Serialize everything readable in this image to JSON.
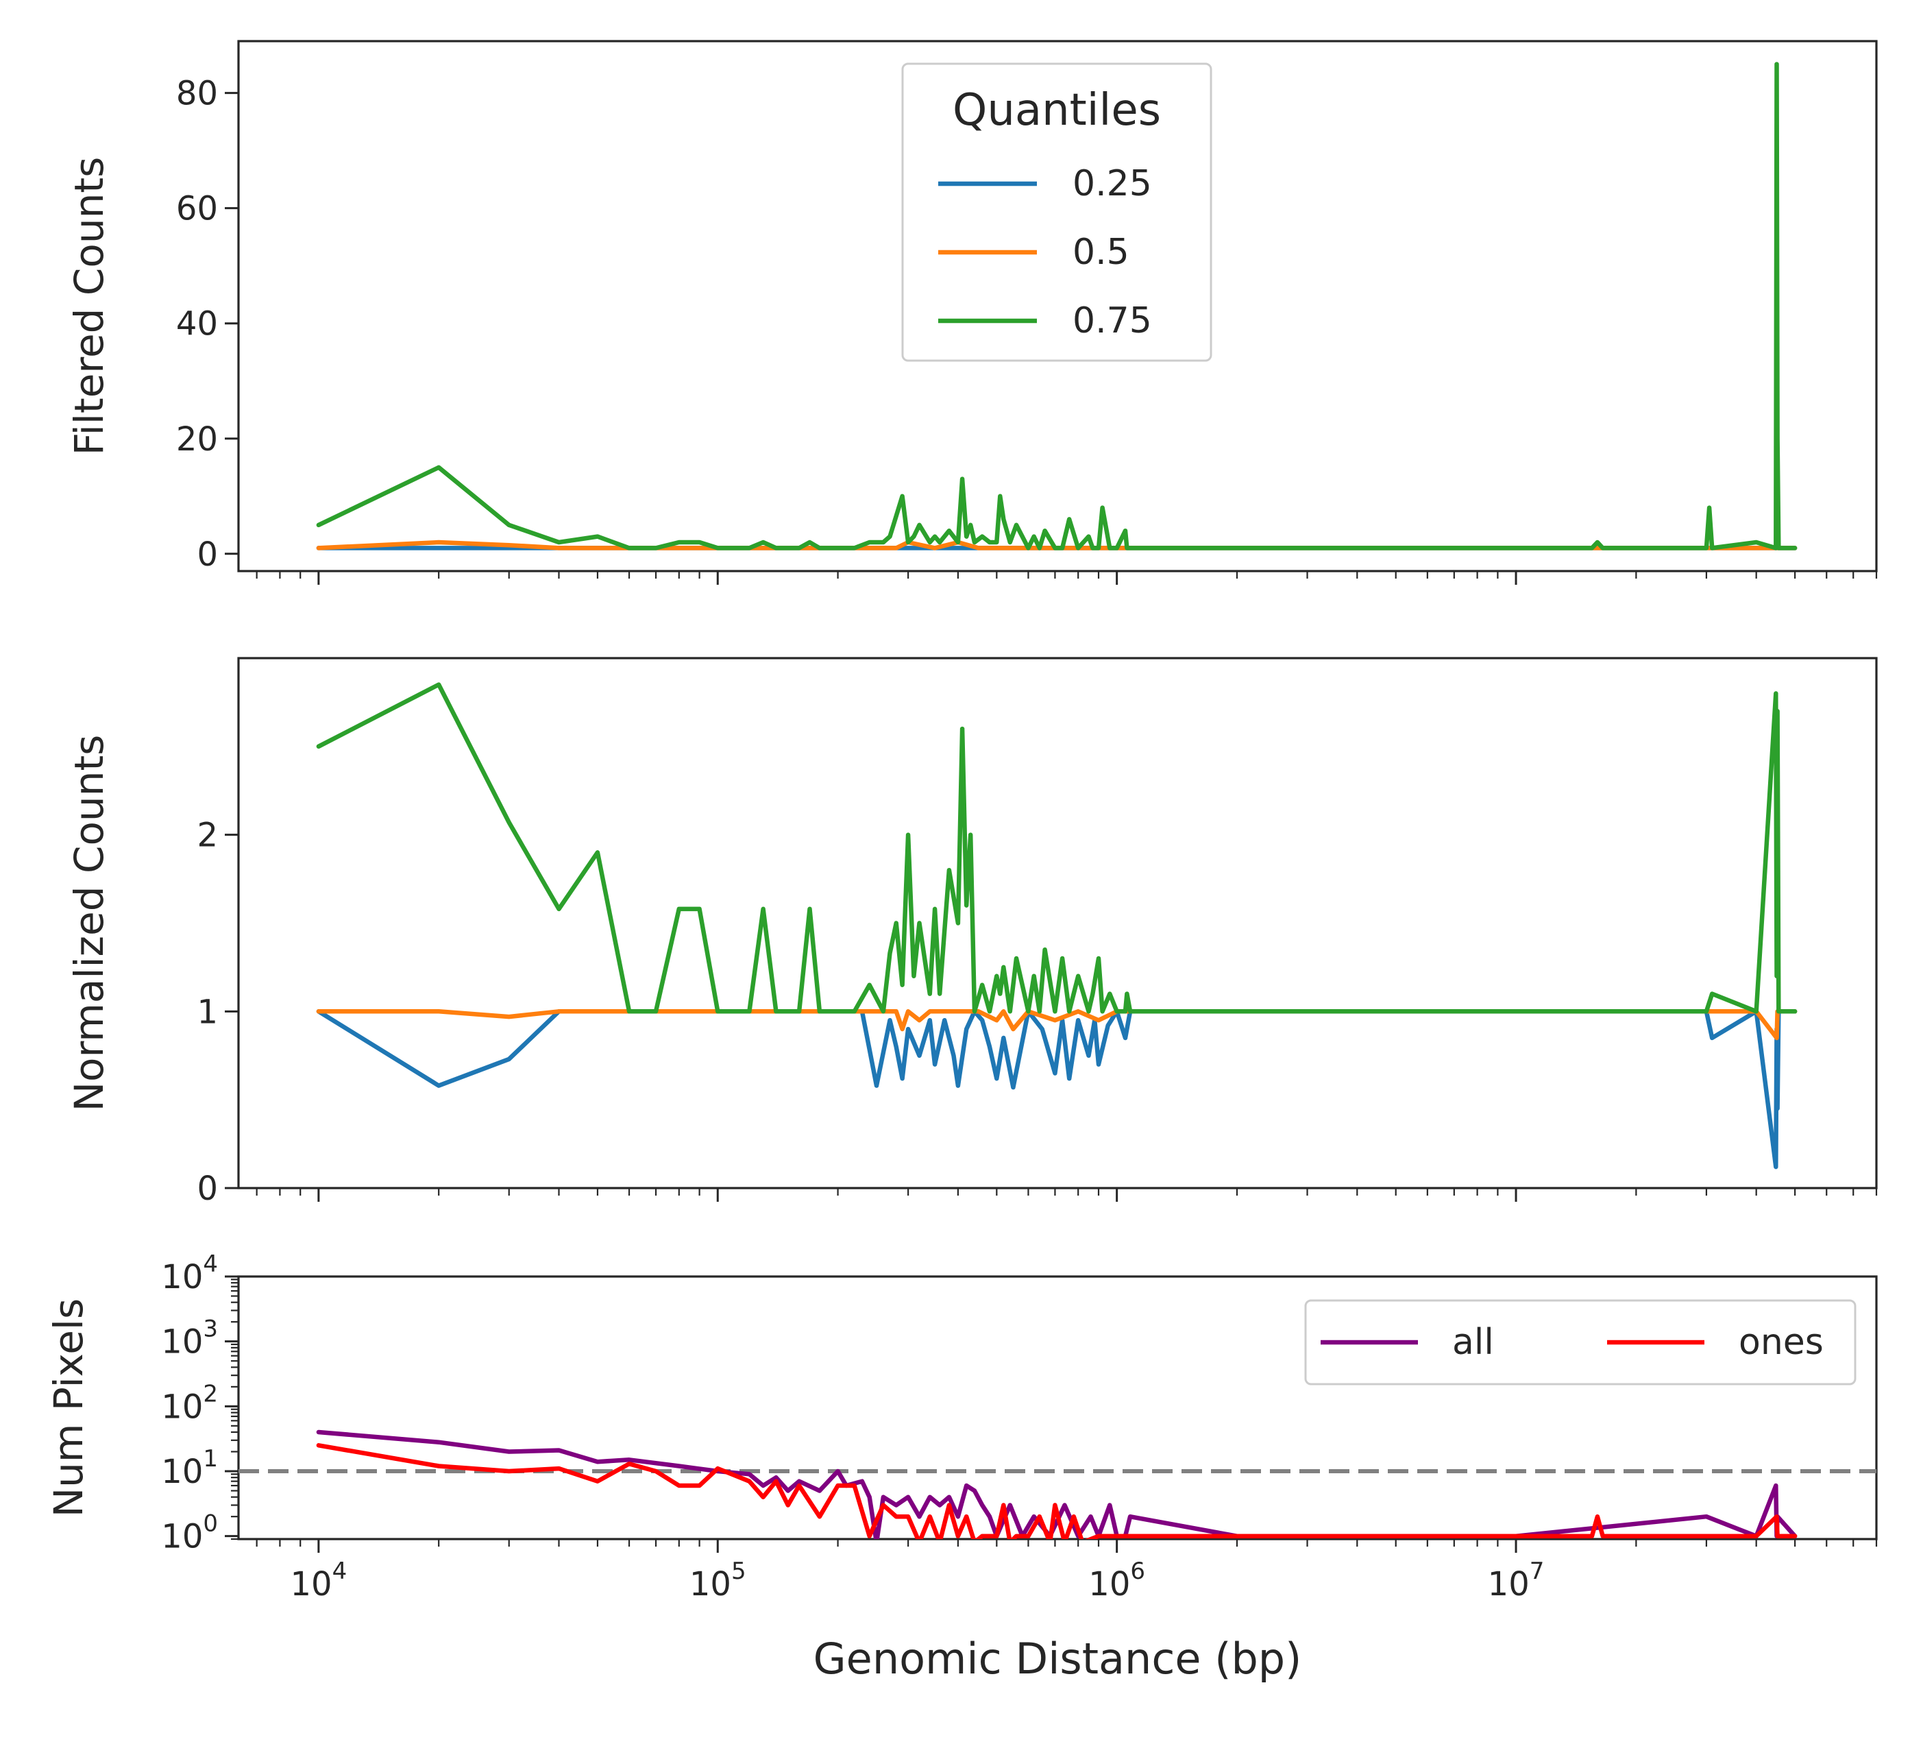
{
  "chart_data": [
    {
      "type": "line",
      "xscale": "log",
      "xlim": [
        6300,
        80000000
      ],
      "ylim": [
        -3,
        89
      ],
      "yticks": [
        0,
        20,
        40,
        60,
        80
      ],
      "ylabel": "Filtered Counts",
      "xlabel": "",
      "grid": false,
      "legend": {
        "title": "Quantiles",
        "placement": "upper-center"
      },
      "series": [
        {
          "name": "0.25",
          "color": "#1f77b4",
          "x": [
            10000,
            20000,
            30000,
            40000,
            50000,
            60000,
            80000,
            100000,
            200000,
            250000,
            300000,
            350000,
            400000,
            450000,
            500000,
            600000,
            800000,
            1000000,
            2000000,
            10000000,
            30000000,
            40000000,
            45000000,
            50000000
          ],
          "y": [
            1,
            1,
            1,
            1,
            1,
            1,
            1,
            1,
            1,
            1,
            1,
            1,
            1,
            1,
            1,
            1,
            1,
            1,
            1,
            1,
            1,
            1,
            1,
            1
          ]
        },
        {
          "name": "0.5",
          "color": "#ff7f0e",
          "x": [
            10000,
            20000,
            30000,
            40000,
            50000,
            60000,
            80000,
            100000,
            200000,
            280000,
            300000,
            350000,
            400000,
            450000,
            500000,
            600000,
            800000,
            1000000,
            2000000,
            10000000,
            30000000,
            40000000,
            45000000,
            50000000
          ],
          "y": [
            1,
            2,
            1.5,
            1,
            1,
            1,
            1,
            1,
            1,
            1,
            2,
            1,
            2,
            1,
            1,
            1,
            1,
            1,
            1,
            1,
            1,
            1,
            1,
            1
          ]
        },
        {
          "name": "0.75",
          "color": "#2ca02c",
          "x": [
            10000,
            20000,
            30000,
            40000,
            50000,
            60000,
            70000,
            80000,
            90000,
            100000,
            120000,
            130000,
            140000,
            160000,
            170000,
            180000,
            220000,
            240000,
            260000,
            270000,
            290000,
            300000,
            310000,
            320000,
            340000,
            350000,
            360000,
            380000,
            400000,
            410000,
            420000,
            430000,
            440000,
            460000,
            480000,
            500000,
            510000,
            520000,
            540000,
            560000,
            600000,
            620000,
            640000,
            660000,
            700000,
            730000,
            760000,
            800000,
            850000,
            870000,
            900000,
            920000,
            960000,
            1000000,
            1050000,
            1060000,
            1080000,
            2000000,
            10000000,
            15500000,
            16000000,
            16500000,
            30000000,
            30500000,
            31000000,
            40000000,
            44800000,
            45000000,
            45200000,
            45500000,
            46000000,
            50000000
          ],
          "y": [
            5,
            15,
            5,
            2,
            3,
            1,
            1,
            2,
            2,
            1,
            1,
            2,
            1,
            1,
            2,
            1,
            1,
            2,
            2,
            3,
            10,
            2,
            3,
            5,
            2,
            3,
            2,
            4,
            2,
            13,
            3,
            5,
            2,
            3,
            2,
            2,
            10,
            6,
            2,
            5,
            1,
            3,
            1,
            4,
            1,
            1,
            6,
            1,
            3,
            1,
            1,
            8,
            1,
            1,
            4,
            1,
            1,
            1,
            1,
            1,
            2,
            1,
            1,
            8,
            1,
            2,
            1,
            85,
            20,
            1,
            1,
            1
          ]
        }
      ]
    },
    {
      "type": "line",
      "xscale": "log",
      "xlim": [
        6300,
        80000000
      ],
      "ylim": [
        0,
        3
      ],
      "yticks": [
        0,
        1,
        2
      ],
      "ylabel": "Normalized Counts",
      "xlabel": "",
      "grid": false,
      "series": [
        {
          "name": "0.25",
          "color": "#1f77b4",
          "x": [
            10000,
            20000,
            30000,
            40000,
            50000,
            200000,
            230000,
            250000,
            270000,
            280000,
            290000,
            300000,
            320000,
            340000,
            350000,
            370000,
            390000,
            400000,
            420000,
            440000,
            460000,
            480000,
            500000,
            520000,
            550000,
            600000,
            650000,
            700000,
            730000,
            760000,
            800000,
            850000,
            880000,
            900000,
            950000,
            1000000,
            1050000,
            1080000,
            2000000,
            10000000,
            30000000,
            31000000,
            40000000,
            44800000,
            45000000,
            45200000,
            45500000,
            50000000
          ],
          "y": [
            1,
            0.58,
            0.73,
            1,
            1,
            1,
            1,
            0.58,
            0.95,
            0.8,
            0.62,
            0.9,
            0.75,
            0.95,
            0.7,
            0.95,
            0.75,
            0.58,
            0.9,
            1,
            0.95,
            0.8,
            0.62,
            0.85,
            0.57,
            1,
            0.9,
            0.65,
            0.95,
            0.62,
            0.95,
            0.75,
            0.95,
            0.7,
            0.92,
            1,
            0.85,
            1,
            1,
            1,
            1,
            0.85,
            1,
            0.12,
            0.9,
            0.45,
            1,
            1
          ]
        },
        {
          "name": "0.5",
          "color": "#ff7f0e",
          "x": [
            10000,
            20000,
            30000,
            40000,
            50000,
            200000,
            280000,
            290000,
            300000,
            320000,
            340000,
            400000,
            450000,
            500000,
            520000,
            550000,
            600000,
            700000,
            800000,
            900000,
            1000000,
            2000000,
            10000000,
            30000000,
            40000000,
            45000000,
            45200000,
            50000000
          ],
          "y": [
            1,
            1,
            0.97,
            1,
            1,
            1,
            1,
            0.9,
            1,
            0.95,
            1,
            1,
            1,
            0.95,
            1,
            0.9,
            1,
            0.95,
            1,
            0.95,
            1,
            1,
            1,
            1,
            1,
            0.85,
            1,
            1
          ]
        },
        {
          "name": "0.75",
          "color": "#2ca02c",
          "x": [
            10000,
            20000,
            30000,
            40000,
            50000,
            60000,
            70000,
            80000,
            90000,
            100000,
            120000,
            130000,
            140000,
            160000,
            170000,
            180000,
            220000,
            240000,
            260000,
            270000,
            280000,
            290000,
            300000,
            310000,
            320000,
            340000,
            350000,
            360000,
            380000,
            400000,
            410000,
            420000,
            430000,
            440000,
            460000,
            480000,
            500000,
            510000,
            520000,
            540000,
            560000,
            600000,
            620000,
            640000,
            660000,
            700000,
            730000,
            760000,
            800000,
            850000,
            870000,
            900000,
            920000,
            960000,
            1000000,
            1050000,
            1060000,
            1080000,
            2000000,
            10000000,
            30000000,
            31000000,
            40000000,
            44800000,
            45000000,
            45200000,
            45500000,
            50000000
          ],
          "y": [
            2.5,
            2.85,
            2.07,
            1.58,
            1.9,
            1,
            1,
            1.58,
            1.58,
            1,
            1,
            1.58,
            1,
            1,
            1.58,
            1,
            1,
            1.15,
            1,
            1.33,
            1.5,
            1.15,
            2,
            1.2,
            1.5,
            1.1,
            1.58,
            1.1,
            1.8,
            1.5,
            2.6,
            1.6,
            2,
            1,
            1.15,
            1,
            1.2,
            1.1,
            1.25,
            1,
            1.3,
            1,
            1.2,
            1,
            1.35,
            1,
            1.3,
            1,
            1.2,
            1,
            1.1,
            1.3,
            1,
            1.1,
            1,
            1,
            1.1,
            1,
            1,
            1,
            1,
            1.1,
            1,
            2.8,
            1.2,
            2.7,
            1,
            1
          ]
        }
      ]
    },
    {
      "type": "line",
      "xscale": "log",
      "yscale": "log",
      "xlim": [
        6300,
        80000000
      ],
      "ylim": [
        0.9,
        10000
      ],
      "ylabel": "Num Pixels",
      "xlabel": "Genomic Distance (bp)",
      "grid": false,
      "hline": {
        "y": 10,
        "color": "#808080",
        "style": "dashed"
      },
      "legend": {
        "placement": "upper-right",
        "columns": 2
      },
      "series": [
        {
          "name": "all",
          "color": "#800080",
          "x": [
            10000,
            20000,
            30000,
            40000,
            50000,
            60000,
            80000,
            100000,
            120000,
            130000,
            140000,
            150000,
            160000,
            180000,
            200000,
            210000,
            230000,
            240000,
            250000,
            260000,
            280000,
            300000,
            320000,
            340000,
            360000,
            380000,
            400000,
            420000,
            440000,
            460000,
            480000,
            500000,
            540000,
            580000,
            620000,
            680000,
            740000,
            800000,
            860000,
            900000,
            960000,
            1000000,
            1050000,
            1080000,
            2000000,
            10000000,
            30000000,
            40000000,
            44800000,
            45000000,
            45200000,
            50000000
          ],
          "y": [
            40,
            28,
            20,
            21,
            14,
            15,
            12,
            10,
            9,
            6,
            8,
            5,
            7,
            5,
            10,
            6,
            7,
            4,
            0.8,
            4,
            3,
            4,
            2,
            4,
            3,
            4,
            2,
            6,
            5,
            3,
            2,
            1,
            3,
            1,
            2,
            1,
            3,
            1,
            2,
            1,
            3,
            1,
            1,
            2,
            1,
            1,
            2,
            1,
            6,
            1,
            2,
            1
          ]
        },
        {
          "name": "ones",
          "color": "#ff0000",
          "x": [
            10000,
            20000,
            30000,
            40000,
            50000,
            60000,
            70000,
            80000,
            90000,
            100000,
            120000,
            130000,
            140000,
            150000,
            160000,
            180000,
            200000,
            220000,
            240000,
            260000,
            280000,
            300000,
            320000,
            340000,
            360000,
            380000,
            400000,
            420000,
            440000,
            460000,
            480000,
            500000,
            520000,
            540000,
            560000,
            600000,
            640000,
            680000,
            700000,
            740000,
            780000,
            820000,
            900000,
            1000000,
            2000000,
            10000000,
            15500000,
            16000000,
            16500000,
            30000000,
            40000000,
            45000000,
            45200000,
            50000000
          ],
          "y": [
            25,
            12,
            10,
            11,
            7,
            13,
            10,
            6,
            6,
            11,
            7,
            4,
            7,
            3,
            6,
            2,
            6,
            6,
            1,
            3,
            2,
            2,
            0.8,
            2,
            0.8,
            3,
            1,
            2,
            0.8,
            1,
            1,
            1,
            3,
            0.8,
            1,
            1,
            2,
            0.8,
            3,
            0.8,
            2,
            0.8,
            1,
            1,
            1,
            1,
            1,
            2,
            1,
            1,
            1,
            2,
            1,
            1
          ]
        }
      ]
    }
  ]
}
